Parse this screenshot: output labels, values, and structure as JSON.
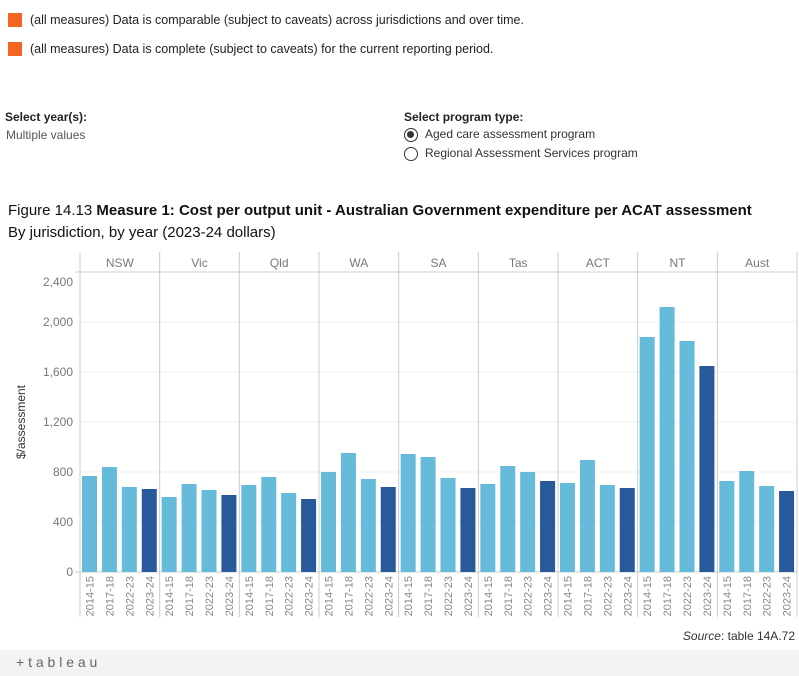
{
  "caveats": [
    {
      "text": "(all measures) Data is comparable (subject to caveats) across jurisdictions and over time.",
      "color": "#f26522"
    },
    {
      "text": "(all measures) Data is complete (subject to caveats) for the current reporting period.",
      "color": "#f26522"
    }
  ],
  "filters": {
    "year": {
      "label": "Select year(s):",
      "value": "Multiple values"
    },
    "program": {
      "label": "Select program type:",
      "options": [
        {
          "label": "Aged care assessment program",
          "selected": true
        },
        {
          "label": "Regional Assessment Services program",
          "selected": false
        }
      ]
    }
  },
  "figure": {
    "number": "Figure 14.13",
    "title": "Measure 1: Cost per output unit - Australian Government expenditure per ACAT assessment",
    "subtitle": "By jurisdiction, by year (2023-24 dollars)"
  },
  "source": {
    "prefix": "Source",
    "text": ": table 14A.72"
  },
  "footer": {
    "brand": "+ t a b l e a u"
  },
  "chart_data": {
    "type": "bar",
    "ylabel": "$/assessment",
    "ylim": [
      0,
      2400
    ],
    "yticks": [
      0,
      400,
      800,
      1200,
      1600,
      2000,
      2400
    ],
    "ytick_labels": [
      "0",
      "400",
      "800",
      "1,200",
      "1,600",
      "2,000",
      "2,400"
    ],
    "grid": true,
    "panels": [
      "NSW",
      "Vic",
      "Qld",
      "WA",
      "SA",
      "Tas",
      "ACT",
      "NT",
      "Aust"
    ],
    "categories": [
      "2014-15",
      "2017-18",
      "2022-23",
      "2023-24"
    ],
    "colors": {
      "past": "#66bbdb",
      "current": "#27599b"
    },
    "values": [
      [
        768,
        840,
        680,
        664
      ],
      [
        600,
        704,
        656,
        616
      ],
      [
        696,
        760,
        632,
        584
      ],
      [
        800,
        952,
        744,
        680
      ],
      [
        944,
        920,
        752,
        672
      ],
      [
        704,
        848,
        800,
        728
      ],
      [
        712,
        896,
        696,
        672
      ],
      [
        1880,
        2120,
        1848,
        1648
      ],
      [
        728,
        808,
        688,
        648
      ]
    ]
  }
}
